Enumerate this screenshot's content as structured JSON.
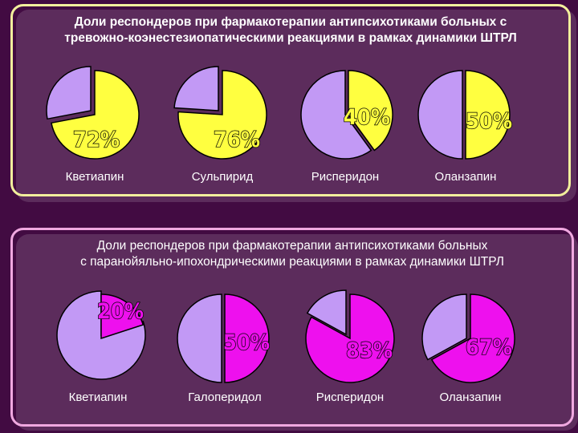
{
  "chart_data": [
    {
      "type": "pie",
      "title": "Доли респондеров при фармакотерапии антипсихотиками больных с тревожно-коэнестезиопатическими реакциями в рамках динамики ШТРЛ",
      "title_lines": [
        "Доли респондеров при фармакотерапии антипсихотиками больных с",
        "тревожно-коэнестезиопатическими реакциями в рамках динамики ШТРЛ"
      ],
      "categories": [
        "Кветиапин",
        "Сульпирид",
        "Рисперидон",
        "Оланзапин"
      ],
      "values": [
        72,
        76,
        40,
        50
      ],
      "labels": [
        "72%",
        "76%",
        "40%",
        "50%"
      ],
      "responder_color": "#ffff40",
      "other_color": "#c299f5"
    },
    {
      "type": "pie",
      "title": "Доли респондеров при фармакотерапии антипсихотиками больных с паранойяльно-ипохондрическими реакциями в рамках динамики ШТРЛ",
      "title_lines": [
        "Доли респондеров при фармакотерапии антипсихотиками больных",
        "с паранойяльно-ипохондрическими реакциями в рамках динамики ШТРЛ"
      ],
      "categories": [
        "Кветиапин",
        "Галоперидол",
        "Рисперидон",
        "Оланзапин"
      ],
      "values": [
        20,
        50,
        83,
        67
      ],
      "labels": [
        "20%",
        "50%",
        "83%",
        "67%"
      ],
      "responder_color": "#ee10ee",
      "other_color": "#c299f5"
    }
  ]
}
